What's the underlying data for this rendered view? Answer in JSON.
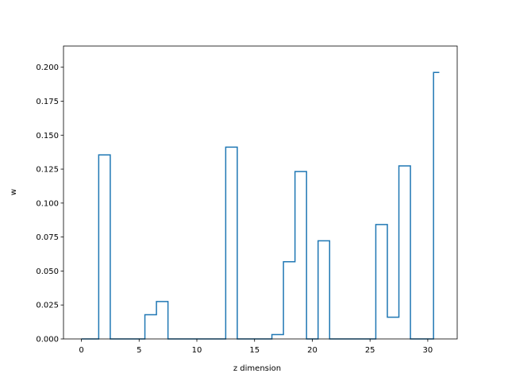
{
  "chart_data": {
    "type": "line",
    "drawstyle": "steps-mid",
    "title": "",
    "xlabel": "z dimension",
    "ylabel": "w",
    "xlim": [
      -1.55,
      32.55
    ],
    "ylim": [
      0,
      0.2156
    ],
    "xticks": [
      0,
      5,
      10,
      15,
      20,
      25,
      30
    ],
    "xtick_labels": [
      "0",
      "5",
      "10",
      "15",
      "20",
      "25",
      "30"
    ],
    "yticks": [
      0,
      0.025,
      0.05,
      0.075,
      0.1,
      0.125,
      0.15,
      0.175,
      0.2
    ],
    "ytick_labels": [
      "0.000",
      "0.025",
      "0.050",
      "0.075",
      "0.100",
      "0.125",
      "0.150",
      "0.175",
      "0.200"
    ],
    "grid": false,
    "line_color": "#1f77b4",
    "series": [
      {
        "x": [
          0,
          1,
          2,
          3,
          4,
          5,
          6,
          7,
          8,
          9,
          10,
          11,
          12,
          13,
          14,
          15,
          16,
          17,
          18,
          19,
          20,
          21,
          22,
          23,
          24,
          25,
          26,
          27,
          28,
          29,
          30,
          31
        ],
        "values": [
          0,
          0,
          0.1355,
          0,
          0,
          0,
          0.0178,
          0.0275,
          0,
          0,
          0,
          0,
          0,
          0.1412,
          0,
          0,
          0,
          0.0032,
          0.0568,
          0.1232,
          0,
          0.0722,
          0,
          0,
          0,
          0,
          0.0842,
          0.016,
          0.1274,
          0,
          0,
          0.1962
        ]
      }
    ]
  }
}
